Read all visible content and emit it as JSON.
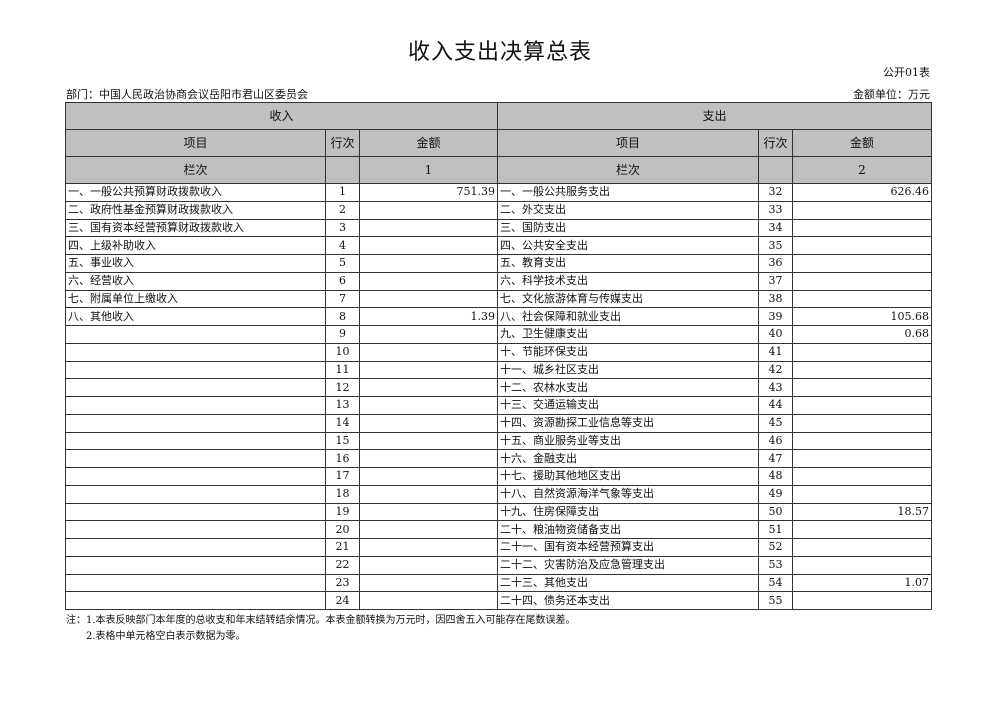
{
  "title": "收入支出决算总表",
  "form_no": "公开01表",
  "department": "部门：中国人民政治协商会议岳阳市君山区委员会",
  "unit": "金额单位：万元",
  "header": {
    "income": "收入",
    "expense": "支出",
    "item": "项目",
    "row_no": "行次",
    "amount": "金额",
    "column_label": "栏次",
    "income_col": "1",
    "expense_col": "2"
  },
  "income_rows": [
    {
      "item": "一、一般公共预算财政拨款收入",
      "no": "1",
      "amount": "751.39"
    },
    {
      "item": "二、政府性基金预算财政拨款收入",
      "no": "2",
      "amount": ""
    },
    {
      "item": "三、国有资本经营预算财政拨款收入",
      "no": "3",
      "amount": ""
    },
    {
      "item": "四、上级补助收入",
      "no": "4",
      "amount": ""
    },
    {
      "item": "五、事业收入",
      "no": "5",
      "amount": ""
    },
    {
      "item": "六、经营收入",
      "no": "6",
      "amount": ""
    },
    {
      "item": "七、附属单位上缴收入",
      "no": "7",
      "amount": ""
    },
    {
      "item": "八、其他收入",
      "no": "8",
      "amount": "1.39"
    },
    {
      "item": "",
      "no": "9",
      "amount": ""
    },
    {
      "item": "",
      "no": "10",
      "amount": ""
    },
    {
      "item": "",
      "no": "11",
      "amount": ""
    },
    {
      "item": "",
      "no": "12",
      "amount": ""
    },
    {
      "item": "",
      "no": "13",
      "amount": ""
    },
    {
      "item": "",
      "no": "14",
      "amount": ""
    },
    {
      "item": "",
      "no": "15",
      "amount": ""
    },
    {
      "item": "",
      "no": "16",
      "amount": ""
    },
    {
      "item": "",
      "no": "17",
      "amount": ""
    },
    {
      "item": "",
      "no": "18",
      "amount": ""
    },
    {
      "item": "",
      "no": "19",
      "amount": ""
    },
    {
      "item": "",
      "no": "20",
      "amount": ""
    },
    {
      "item": "",
      "no": "21",
      "amount": ""
    },
    {
      "item": "",
      "no": "22",
      "amount": ""
    },
    {
      "item": "",
      "no": "23",
      "amount": ""
    },
    {
      "item": "",
      "no": "24",
      "amount": ""
    }
  ],
  "expense_rows": [
    {
      "item": "一、一般公共服务支出",
      "no": "32",
      "amount": "626.46"
    },
    {
      "item": "二、外交支出",
      "no": "33",
      "amount": ""
    },
    {
      "item": "三、国防支出",
      "no": "34",
      "amount": ""
    },
    {
      "item": "四、公共安全支出",
      "no": "35",
      "amount": ""
    },
    {
      "item": "五、教育支出",
      "no": "36",
      "amount": ""
    },
    {
      "item": "六、科学技术支出",
      "no": "37",
      "amount": ""
    },
    {
      "item": "七、文化旅游体育与传媒支出",
      "no": "38",
      "amount": ""
    },
    {
      "item": "八、社会保障和就业支出",
      "no": "39",
      "amount": "105.68"
    },
    {
      "item": "九、卫生健康支出",
      "no": "40",
      "amount": "0.68"
    },
    {
      "item": "十、节能环保支出",
      "no": "41",
      "amount": ""
    },
    {
      "item": "十一、城乡社区支出",
      "no": "42",
      "amount": ""
    },
    {
      "item": "十二、农林水支出",
      "no": "43",
      "amount": ""
    },
    {
      "item": "十三、交通运输支出",
      "no": "44",
      "amount": ""
    },
    {
      "item": "十四、资源勘探工业信息等支出",
      "no": "45",
      "amount": ""
    },
    {
      "item": "十五、商业服务业等支出",
      "no": "46",
      "amount": ""
    },
    {
      "item": "十六、金融支出",
      "no": "47",
      "amount": ""
    },
    {
      "item": "十七、援助其他地区支出",
      "no": "48",
      "amount": ""
    },
    {
      "item": "十八、自然资源海洋气象等支出",
      "no": "49",
      "amount": ""
    },
    {
      "item": "十九、住房保障支出",
      "no": "50",
      "amount": "18.57"
    },
    {
      "item": "二十、粮油物资储备支出",
      "no": "51",
      "amount": ""
    },
    {
      "item": "二十一、国有资本经营预算支出",
      "no": "52",
      "amount": ""
    },
    {
      "item": "二十二、灾害防治及应急管理支出",
      "no": "53",
      "amount": ""
    },
    {
      "item": "二十三、其他支出",
      "no": "54",
      "amount": "1.07"
    },
    {
      "item": "二十四、债务还本支出",
      "no": "55",
      "amount": ""
    }
  ],
  "notes": [
    "注：1.本表反映部门本年度的总收支和年末结转结余情况。本表金额转换为万元时，因四舍五入可能存在尾数误差。",
    "2.表格中单元格空白表示数据为零。"
  ]
}
